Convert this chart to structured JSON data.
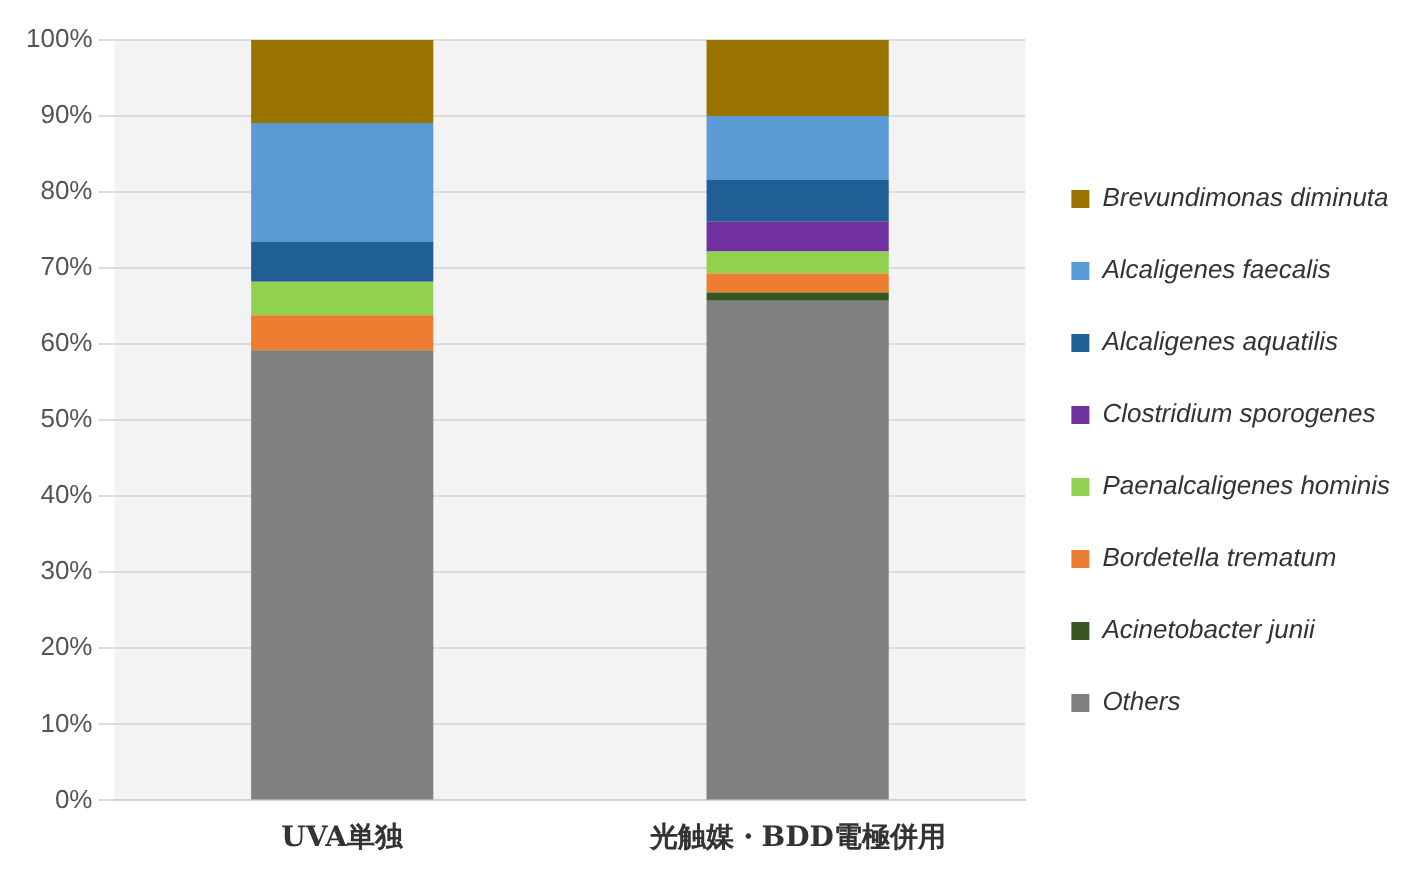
{
  "chart_data": {
    "type": "bar",
    "stacked": true,
    "categories": [
      "UVA単独",
      "光触媒・BDD電極併用"
    ],
    "series": [
      {
        "name": "Others",
        "color": "#808080",
        "values": [
          59.2,
          65.7
        ]
      },
      {
        "name": "Acinetobacter junii",
        "color": "#375623",
        "values": [
          0,
          1.1
        ]
      },
      {
        "name": "Bordetella trematum",
        "color": "#ed7d31",
        "values": [
          4.6,
          2.5
        ]
      },
      {
        "name": "Paenalcaligenes hominis",
        "color": "#92d050",
        "values": [
          4.4,
          2.9
        ]
      },
      {
        "name": "Clostridium sporogenes",
        "color": "#7030a0",
        "values": [
          0,
          3.9
        ]
      },
      {
        "name": "Alcaligenes aquatilis",
        "color": "#1f5f96",
        "values": [
          5.3,
          5.5
        ]
      },
      {
        "name": "Alcaligenes faecalis",
        "color": "#5b9bd5",
        "values": [
          15.6,
          8.4
        ]
      },
      {
        "name": "Brevundimonas diminuta",
        "color": "#997300",
        "values": [
          10.9,
          10.0
        ]
      }
    ],
    "ylim": [
      0,
      100
    ],
    "yticks": [
      {
        "value": 0,
        "label": "0%"
      },
      {
        "value": 10,
        "label": "10%"
      },
      {
        "value": 20,
        "label": "20%"
      },
      {
        "value": 30,
        "label": "30%"
      },
      {
        "value": 40,
        "label": "40%"
      },
      {
        "value": 50,
        "label": "50%"
      },
      {
        "value": 60,
        "label": "60%"
      },
      {
        "value": 70,
        "label": "70%"
      },
      {
        "value": 80,
        "label": "80%"
      },
      {
        "value": 90,
        "label": "90%"
      },
      {
        "value": 100,
        "label": "100%"
      }
    ],
    "grid": "y",
    "legend": "right"
  }
}
